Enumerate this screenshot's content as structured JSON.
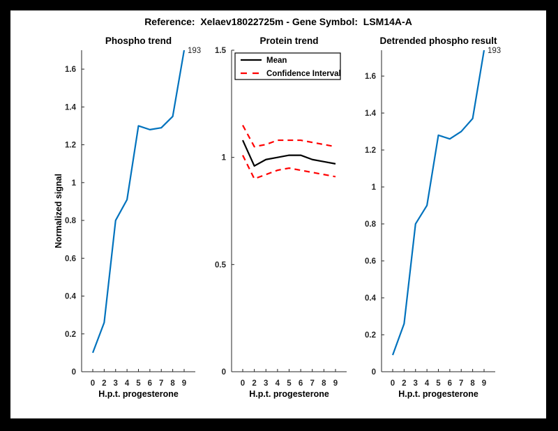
{
  "figure_title": "Reference:  Xelaev18022725m - Gene Symbol:  LSM14A-A",
  "reference_id": "Xelaev18022725m",
  "gene_symbol": "LSM14A-A",
  "colors": {
    "background": "#000000",
    "canvas": "#ffffff",
    "phospho_line_blue": "#0072BD",
    "confidence_red": "#FF0000",
    "mean_black": "#000000",
    "axis_gray": "#262626"
  },
  "chart_data": [
    {
      "type": "line",
      "title": "Phospho trend",
      "xlabel": "H.p.t. progesterone",
      "ylabel": "Normalized signal",
      "x_tick_labels": [
        "0",
        "2",
        "3",
        "4",
        "5",
        "6",
        "7",
        "8",
        "9"
      ],
      "x_spacing": "uniform",
      "y_ticks": [
        0,
        0.2,
        0.4,
        0.6,
        0.8,
        1,
        1.2,
        1.4,
        1.6
      ],
      "ylim": [
        0,
        1.7
      ],
      "grid": false,
      "series": [
        {
          "name": "Phospho signal",
          "color": "#0072BD",
          "style": "solid",
          "values": [
            0.1,
            0.26,
            0.8,
            0.91,
            1.3,
            1.28,
            1.29,
            1.35,
            1.7
          ]
        }
      ],
      "annotation": {
        "text": "193",
        "at_last_point": true
      }
    },
    {
      "type": "line",
      "title": "Protein trend",
      "xlabel": "H.p.t. progesterone",
      "ylabel": "",
      "x_tick_labels": [
        "0",
        "2",
        "3",
        "4",
        "5",
        "6",
        "7",
        "8",
        "9"
      ],
      "x_spacing": "uniform",
      "y_ticks": [
        0,
        0.5,
        1,
        1.5
      ],
      "ylim": [
        0,
        1.5
      ],
      "grid": false,
      "legend": {
        "position": "northwest",
        "entries": [
          {
            "label": "Mean",
            "color": "#000000",
            "style": "solid"
          },
          {
            "label": "Confidence Interval",
            "color": "#FF0000",
            "style": "dashed"
          }
        ]
      },
      "series": [
        {
          "name": "Mean",
          "color": "#000000",
          "style": "solid",
          "values": [
            1.08,
            0.96,
            0.99,
            1.0,
            1.01,
            1.01,
            0.99,
            0.98,
            0.97
          ]
        },
        {
          "name": "CI upper",
          "color": "#FF0000",
          "style": "dashed",
          "values": [
            1.15,
            1.05,
            1.06,
            1.08,
            1.08,
            1.08,
            1.07,
            1.06,
            1.05
          ]
        },
        {
          "name": "CI lower",
          "color": "#FF0000",
          "style": "dashed",
          "values": [
            1.01,
            0.9,
            0.92,
            0.94,
            0.95,
            0.94,
            0.93,
            0.92,
            0.91
          ]
        }
      ]
    },
    {
      "type": "line",
      "title": "Detrended phospho result",
      "xlabel": "H.p.t. progesterone",
      "ylabel": "",
      "x_tick_labels": [
        "0",
        "2",
        "3",
        "4",
        "5",
        "6",
        "7",
        "8",
        "9"
      ],
      "x_spacing": "uniform",
      "y_ticks": [
        0,
        0.2,
        0.4,
        0.6,
        0.8,
        1,
        1.2,
        1.4,
        1.6
      ],
      "ylim": [
        0,
        1.74
      ],
      "grid": false,
      "series": [
        {
          "name": "Detrended phospho signal",
          "color": "#0072BD",
          "style": "solid",
          "values": [
            0.09,
            0.26,
            0.8,
            0.9,
            1.28,
            1.26,
            1.3,
            1.37,
            1.74
          ]
        }
      ],
      "annotation": {
        "text": "193",
        "at_last_point": true
      }
    }
  ]
}
